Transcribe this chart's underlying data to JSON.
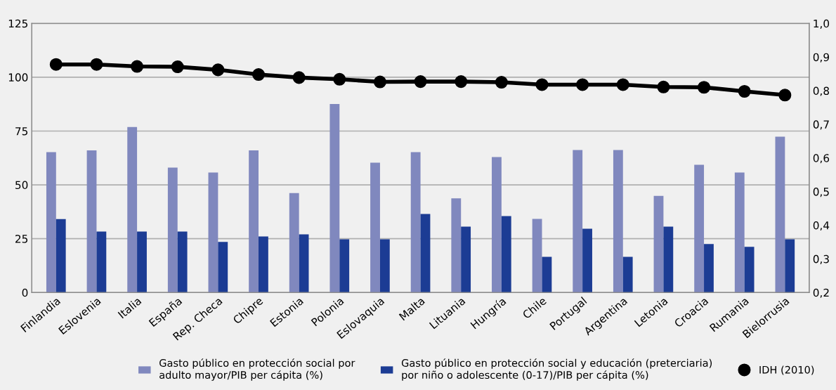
{
  "chart_data": {
    "type": "bar",
    "categories": [
      "Finlandia",
      "Eslovenia",
      "Italia",
      "España",
      "Rep. Checa",
      "Chipre",
      "Estonia",
      "Polonia",
      "Eslovaquia",
      "Malta",
      "Lituania",
      "Hungría",
      "Chile",
      "Portugal",
      "Argentina",
      "Letonia",
      "Croacia",
      "Rumania",
      "Bielorrusia"
    ],
    "series": [
      {
        "name": "Gasto público en protección social por\nadulto mayor/PIB per cápita (%)",
        "color": "#8088be",
        "values": [
          65.2,
          66,
          76.9,
          58,
          55.7,
          66,
          46.2,
          87.6,
          60.3,
          65.2,
          43.7,
          62.9,
          34.2,
          66.2,
          66.2,
          44.9,
          59.3,
          55.7,
          72.4
        ]
      },
      {
        "name": "Gasto público en protección social y educación (preterciaria)\npor niño o adolescente (0-17)/PIB per cápita (%)",
        "color": "#1c3c94",
        "values": [
          34.1,
          28.3,
          28.3,
          28.3,
          23.5,
          26,
          27,
          24.7,
          24.7,
          36.5,
          30.6,
          35.5,
          16.6,
          29.6,
          16.6,
          30.6,
          22.5,
          21.2,
          24.7
        ]
      },
      {
        "name": "IDH (2010)",
        "type": "line",
        "axis": "y2",
        "color": "#000000",
        "marker": "circle",
        "values": [
          0.878,
          0.878,
          0.872,
          0.871,
          0.862,
          0.848,
          0.839,
          0.834,
          0.826,
          0.827,
          0.827,
          0.825,
          0.818,
          0.818,
          0.818,
          0.811,
          0.81,
          0.798,
          0.787
        ]
      }
    ],
    "ylim": [
      0,
      125
    ],
    "yticks": [
      0,
      25,
      50,
      75,
      100,
      125
    ],
    "y2lim": [
      0.2,
      1.0
    ],
    "y2ticks": [
      {
        "value": 0.2,
        "label": "0,2"
      },
      {
        "value": 0.3,
        "label": "0,3"
      },
      {
        "value": 0.4,
        "label": "0,4"
      },
      {
        "value": 0.5,
        "label": "0,5"
      },
      {
        "value": 0.6,
        "label": "0,6"
      },
      {
        "value": 0.7,
        "label": "0,7"
      },
      {
        "value": 0.8,
        "label": "0,8"
      },
      {
        "value": 0.9,
        "label": "0,9"
      },
      {
        "value": 1.0,
        "label": "1,0"
      }
    ],
    "grid": "y",
    "legend": "bottom"
  }
}
